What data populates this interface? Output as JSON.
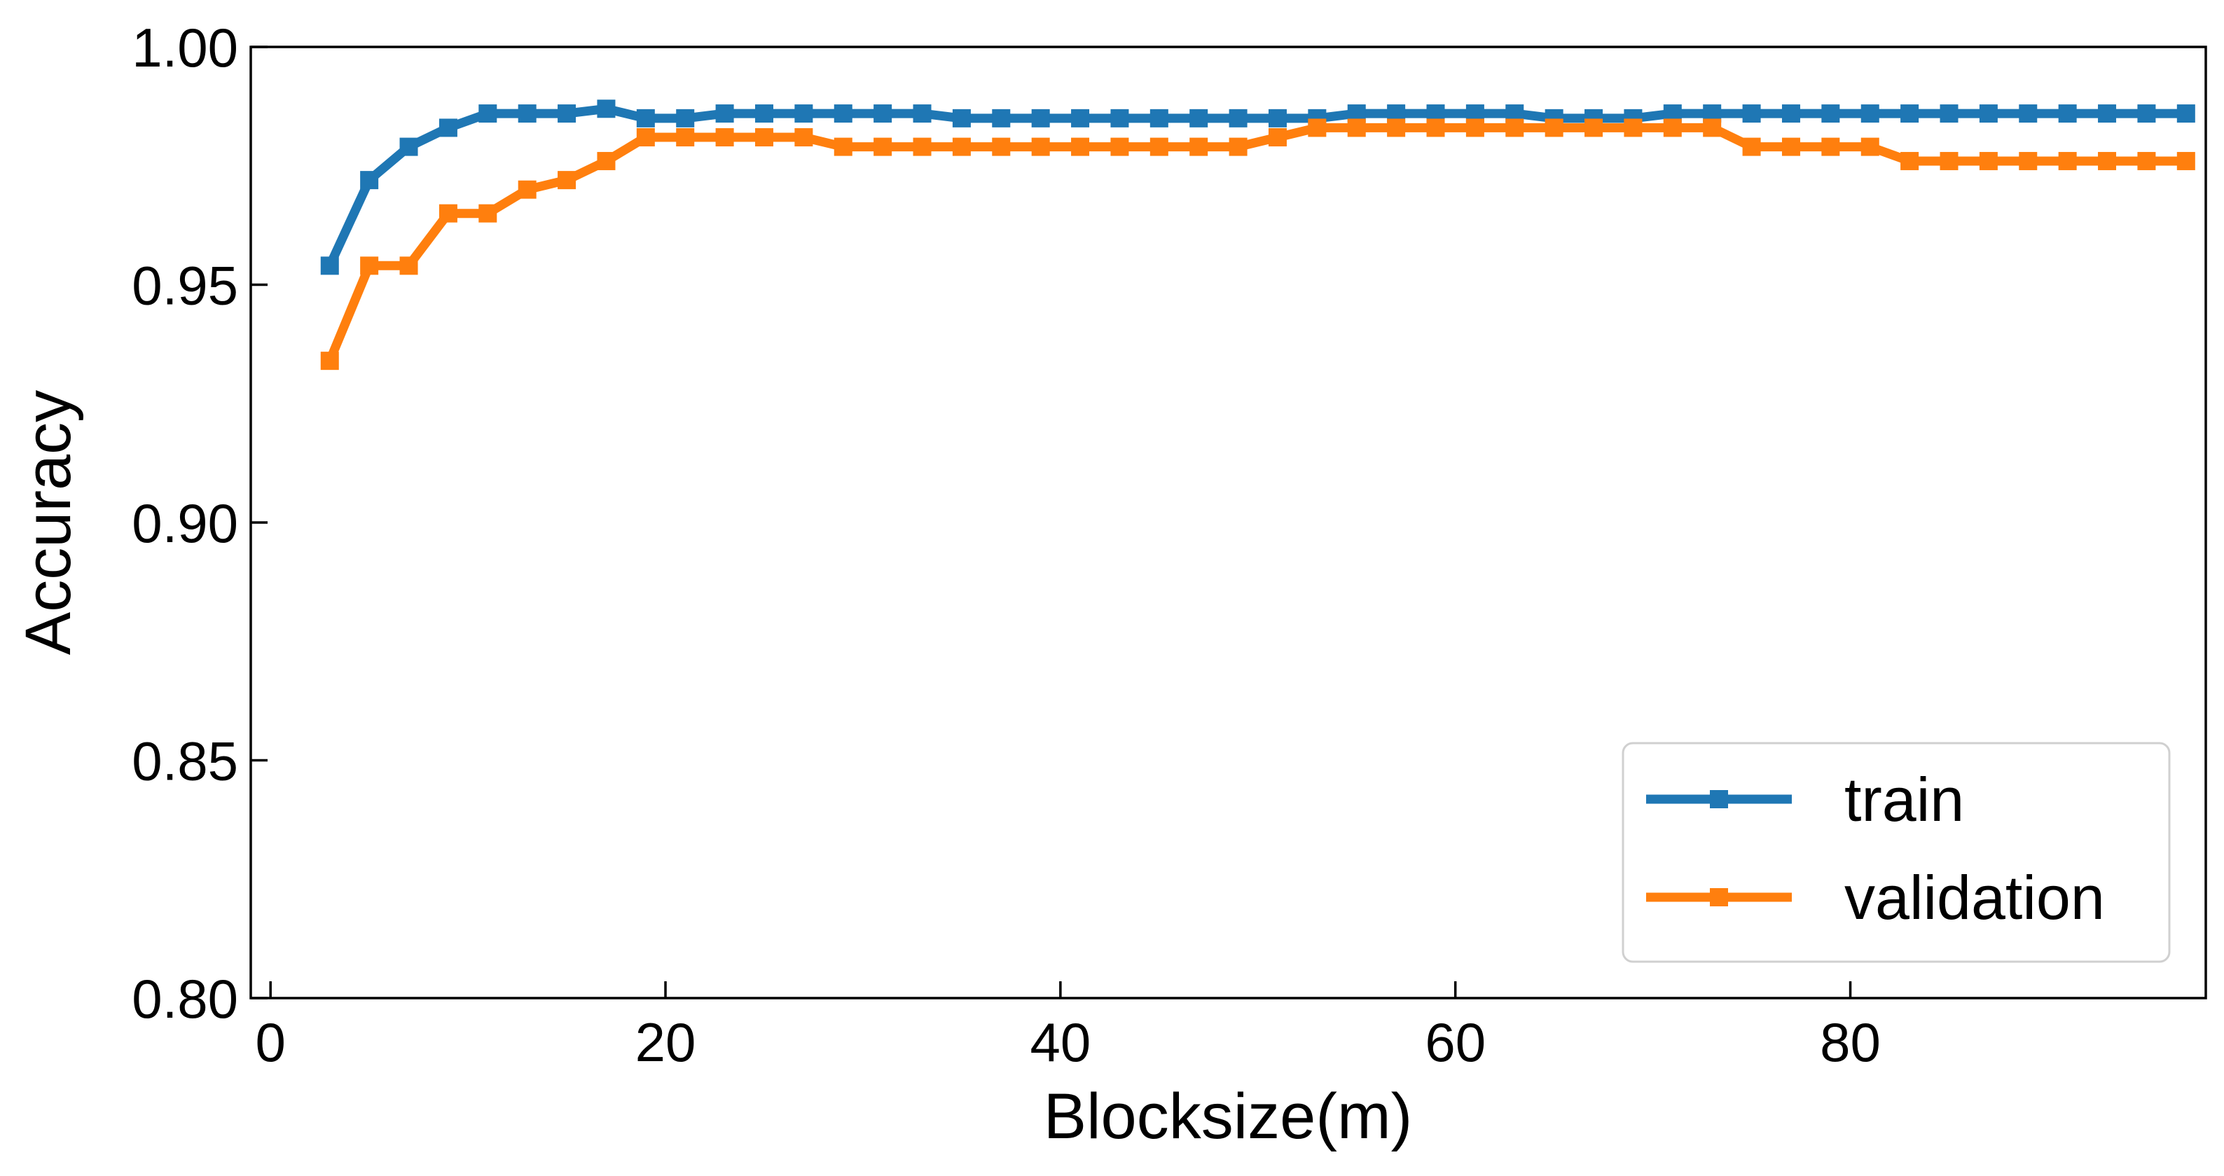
{
  "chart_data": {
    "type": "line",
    "title": "",
    "xlabel": "Blocksize(m)",
    "ylabel": "Accuracy",
    "xlim": [
      -1,
      98
    ],
    "ylim": [
      0.8,
      1.0
    ],
    "x_ticks": [
      0,
      20,
      40,
      60,
      80
    ],
    "x_tick_labels": [
      "0",
      "20",
      "40",
      "60",
      "80"
    ],
    "y_ticks": [
      0.8,
      0.85,
      0.9,
      0.95,
      1.0
    ],
    "y_tick_labels": [
      "0.80",
      "0.85",
      "0.90",
      "0.95",
      "1.00"
    ],
    "grid": false,
    "legend_position": "lower-right",
    "marker": "square",
    "x": [
      3,
      5,
      7,
      9,
      11,
      13,
      15,
      17,
      19,
      21,
      23,
      25,
      27,
      29,
      31,
      33,
      35,
      37,
      39,
      41,
      43,
      45,
      47,
      49,
      51,
      53,
      55,
      57,
      59,
      61,
      63,
      65,
      67,
      69,
      71,
      73,
      75,
      77,
      79,
      81,
      83,
      85,
      87,
      89,
      91,
      93,
      95,
      97
    ],
    "series": [
      {
        "name": "train",
        "color": "#1f77b4",
        "values": [
          0.954,
          0.972,
          0.979,
          0.983,
          0.986,
          0.986,
          0.986,
          0.987,
          0.985,
          0.985,
          0.986,
          0.986,
          0.986,
          0.986,
          0.986,
          0.986,
          0.985,
          0.985,
          0.985,
          0.985,
          0.985,
          0.985,
          0.985,
          0.985,
          0.985,
          0.985,
          0.986,
          0.986,
          0.986,
          0.986,
          0.986,
          0.985,
          0.985,
          0.985,
          0.986,
          0.986,
          0.986,
          0.986,
          0.986,
          0.986,
          0.986,
          0.986,
          0.986,
          0.986,
          0.986,
          0.986,
          0.986,
          0.986
        ]
      },
      {
        "name": "validation",
        "color": "#ff7f0e",
        "values": [
          0.934,
          0.954,
          0.954,
          0.965,
          0.965,
          0.97,
          0.972,
          0.976,
          0.981,
          0.981,
          0.981,
          0.981,
          0.981,
          0.979,
          0.979,
          0.979,
          0.979,
          0.979,
          0.979,
          0.979,
          0.979,
          0.979,
          0.979,
          0.979,
          0.981,
          0.983,
          0.983,
          0.983,
          0.983,
          0.983,
          0.983,
          0.983,
          0.983,
          0.983,
          0.983,
          0.983,
          0.979,
          0.979,
          0.979,
          0.979,
          0.976,
          0.976,
          0.976,
          0.976,
          0.976,
          0.976,
          0.976,
          0.976
        ]
      }
    ]
  }
}
